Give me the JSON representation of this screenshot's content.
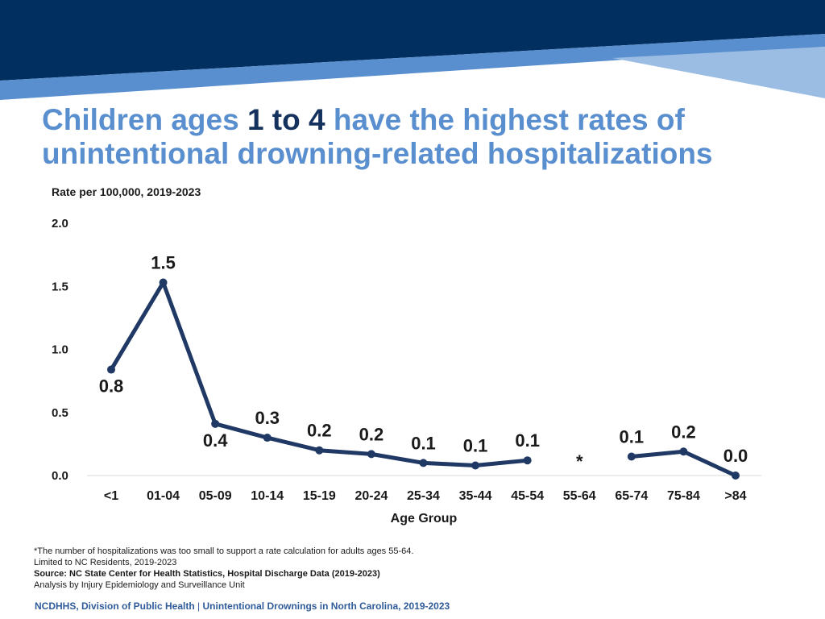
{
  "banner": {
    "color_dark": "#002f60",
    "color_mid": "#5a8fcf",
    "color_light": "#9bbde3"
  },
  "title": {
    "part1": "Children ages ",
    "part2": "1",
    "part3": " to ",
    "part4": "4",
    "part5": " have the highest rates of unintentional drowning-related hospitalizations"
  },
  "chart_data": {
    "type": "line",
    "ylabel": "Rate per 100,000, 2019-2023",
    "xlabel": "Age Group",
    "ylim": [
      0,
      2.0
    ],
    "yticks": [
      "0.0",
      "0.5",
      "1.0",
      "1.5",
      "2.0"
    ],
    "categories": [
      "<1",
      "01-04",
      "05-09",
      "10-14",
      "15-19",
      "20-24",
      "25-34",
      "35-44",
      "45-54",
      "55-64",
      "65-74",
      "75-84",
      ">84"
    ],
    "values": [
      0.84,
      1.53,
      0.41,
      0.3,
      0.2,
      0.17,
      0.1,
      0.08,
      0.12,
      null,
      0.15,
      0.19,
      0.0
    ],
    "labels": [
      "0.8",
      "1.5",
      "0.4",
      "0.3",
      "0.2",
      "0.2",
      "0.1",
      "0.1",
      "0.1",
      "*",
      "0.1",
      "0.2",
      "0.0"
    ],
    "label_positions": [
      "below",
      "above",
      "below",
      "above",
      "above",
      "above",
      "above",
      "above",
      "above",
      "marker",
      "above",
      "above",
      "above"
    ],
    "line_color": "#1f3864",
    "grid": false
  },
  "notes": {
    "line1": "*The number of hospitalizations was too small to support a rate calculation for adults ages 55-64.",
    "line2": "Limited to NC Residents, 2019-2023",
    "line3": "Source: NC State Center for Health Statistics, Hospital Discharge Data (2019-2023)",
    "line4": "Analysis by Injury Epidemiology and Surveillance Unit"
  },
  "footer": {
    "left": "NCDHHS, Division of Public Health",
    "sep": " | ",
    "right": "Unintentional Drownings in North Carolina, 2019-2023"
  }
}
